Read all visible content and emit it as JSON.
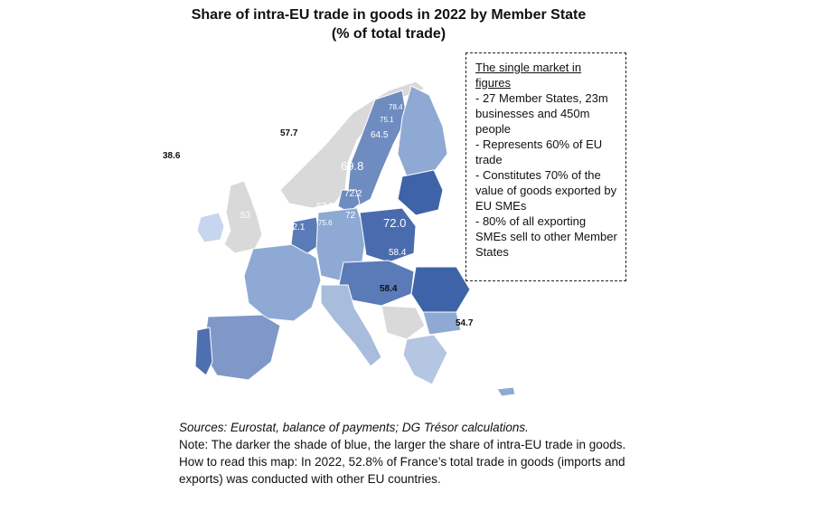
{
  "title_line1": "Share of intra-EU trade in goods in 2022 by Member State",
  "title_line2": "(% of total trade)",
  "map_labels": {
    "sweden_north": "78.4",
    "finland_top": "75.1",
    "sweden_mid": "64.5",
    "sweden_main": "69.8",
    "norway_left": "57.7",
    "iceland": "38.6",
    "ireland": "53",
    "denmark": "72.2",
    "netherlands": "57.3",
    "belgium": "75.6",
    "germany_small": "72",
    "belgium_big": "52.1",
    "poland": "72.0",
    "czechia": "58.4",
    "croatia": "58.4",
    "romania": "54.7"
  },
  "infobox": {
    "heading": "The single market in figures",
    "items": [
      "27 Member States, 23m businesses and 450m people",
      "Represents 60% of EU trade",
      "Constitutes 70% of the value of goods exported by EU SMEs",
      "80% of all exporting SMEs sell to other Member States"
    ]
  },
  "footer": {
    "sources": "Sources: Eurostat, balance of payments; DG Trésor calculations.",
    "note": "Note: The darker the shade of blue, the larger the share of intra-EU trade in goods.",
    "how_to_read": "How to read this map: In 2022, 52.8% of France’s total trade in goods (imports and exports) was conducted with other EU countries."
  },
  "colors": {
    "non_eu": "#d9d9d9",
    "light_blue": "#9fb5d6",
    "mid_blue": "#6f8cc0",
    "dark_blue": "#3f63a8"
  }
}
